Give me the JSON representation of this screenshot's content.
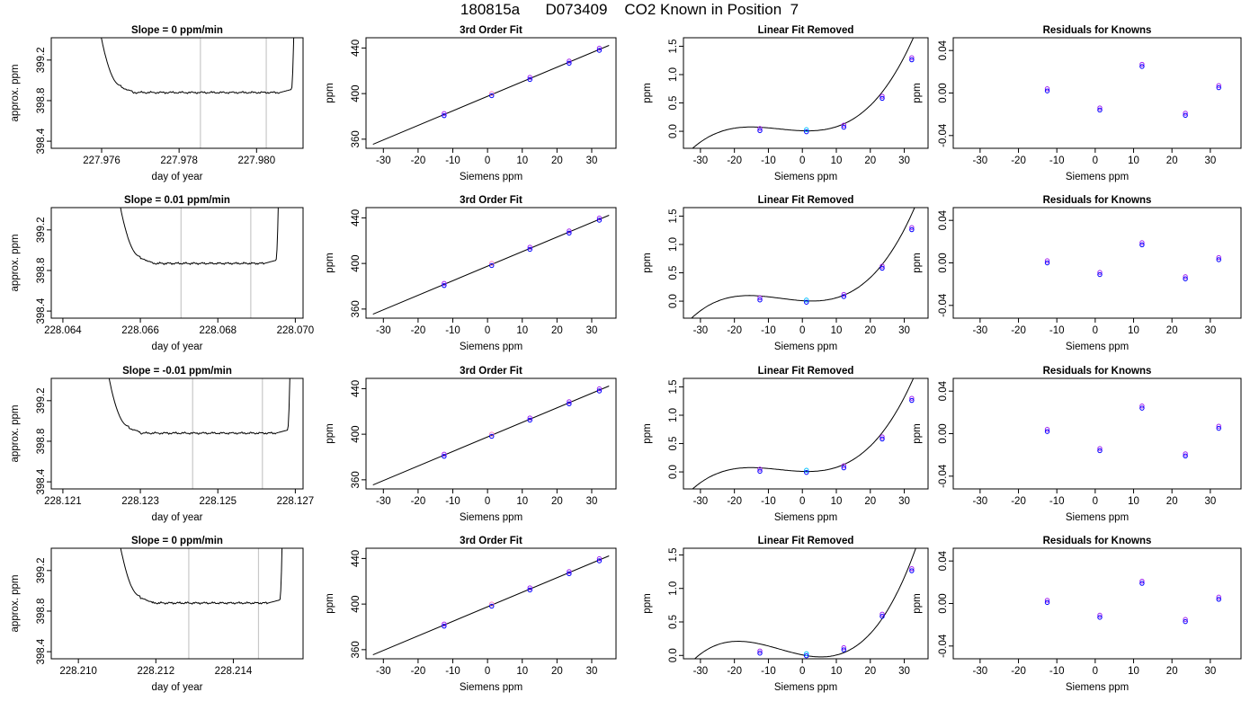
{
  "page": {
    "title": "180815a      D073409    CO2 Known in Position  7"
  },
  "colors": {
    "axis": "#000000",
    "curve": "#000000",
    "marker_window": "#c8c8c8",
    "point_blue": "#0000ff",
    "point_purple": "#a020f0",
    "point_pink": "#ff80c0",
    "point_cyan": "#00bfff"
  },
  "chart_data": [
    {
      "type": "line",
      "row": 0,
      "col": 0,
      "title": "Slope =  0  ppm/min",
      "xlabel": "day of year",
      "ylabel": "approx. ppm",
      "xlim": [
        227.9747,
        227.9812
      ],
      "ylim": [
        398.33,
        399.42
      ],
      "xticks": [
        227.976,
        227.978,
        227.98
      ],
      "xtick_labels": [
        "227.976",
        "227.978",
        "227.980"
      ],
      "yticks": [
        398.4,
        398.8,
        399.2
      ],
      "ytick_labels": [
        "398.4",
        "398.8",
        "399.2"
      ],
      "trace": {
        "start": 227.9757,
        "rise_end": 227.9765,
        "flat_start": 227.9768,
        "flat_end": 227.9806,
        "rise_start": 227.9809,
        "end": 227.981,
        "level": 398.88
      },
      "window": [
        227.97855,
        227.98025
      ]
    },
    {
      "type": "scatter",
      "row": 0,
      "col": 1,
      "title": "3rd Order Fit",
      "xlabel": "Siemens ppm",
      "ylabel": "ppm",
      "xlim": [
        -35,
        37
      ],
      "ylim": [
        352,
        449
      ],
      "xticks": [
        -30,
        -20,
        -10,
        0,
        10,
        20,
        30
      ],
      "xtick_labels": [
        "-30",
        "-20",
        "-10",
        "0",
        "10",
        "20",
        "30"
      ],
      "yticks": [
        360,
        400,
        440
      ],
      "ytick_labels": [
        "360",
        "400",
        "440"
      ],
      "x": [
        -12.5,
        1.2,
        12.2,
        23.5,
        32.2
      ],
      "y": [
        381.6,
        399.1,
        413.3,
        427.6,
        438.9
      ],
      "fit_line": [
        [
          -33,
          355.5
        ],
        [
          35,
          442.3
        ]
      ]
    },
    {
      "type": "scatter",
      "row": 0,
      "col": 2,
      "title": "Linear Fit Removed",
      "xlabel": "Siemens ppm",
      "ylabel": "ppm",
      "xlim": [
        -35,
        37
      ],
      "ylim": [
        -0.3,
        1.65
      ],
      "xticks": [
        -30,
        -20,
        -10,
        0,
        10,
        20,
        30
      ],
      "xtick_labels": [
        "-30",
        "-20",
        "-10",
        "0",
        "10",
        "20",
        "30"
      ],
      "yticks": [
        0.0,
        0.5,
        1.0,
        1.5
      ],
      "ytick_labels": [
        "0.0",
        "0.5",
        "1.0",
        "1.5"
      ],
      "x": [
        -12.5,
        1.2,
        12.2,
        23.5,
        32.2
      ],
      "y": [
        0.03,
        0.01,
        0.09,
        0.6,
        1.28
      ],
      "fit_curve": {
        "coef": [
          0.009,
          -0.002,
          0.000615,
          3.01e-05
        ],
        "xrange": [
          -33,
          35
        ]
      }
    },
    {
      "type": "scatter",
      "row": 0,
      "col": 3,
      "title": "Residuals for Knowns",
      "xlabel": "Siemens ppm",
      "ylabel": "ppm",
      "xlim": [
        -37,
        38
      ],
      "ylim": [
        -0.052,
        0.052
      ],
      "xticks": [
        -30,
        -20,
        -10,
        0,
        10,
        20,
        30
      ],
      "xtick_labels": [
        "-30",
        "-20",
        "-10",
        "0",
        "10",
        "20",
        "30"
      ],
      "yticks": [
        -0.04,
        0.0,
        0.04
      ],
      "ytick_labels": [
        "-0.04",
        "0.00",
        "0.04"
      ],
      "x": [
        -12.5,
        1.2,
        12.2,
        23.5,
        32.2
      ],
      "y": [
        0.003,
        -0.015,
        0.026,
        -0.02,
        0.006
      ]
    },
    {
      "type": "line",
      "row": 1,
      "col": 0,
      "title": "Slope =  0.01  ppm/min",
      "xlabel": "day of year",
      "ylabel": "approx. ppm",
      "xlim": [
        228.0637,
        228.0702
      ],
      "ylim": [
        398.33,
        399.42
      ],
      "xticks": [
        228.064,
        228.066,
        228.068,
        228.07
      ],
      "xtick_labels": [
        "228.064",
        "228.066",
        "228.068",
        "228.070"
      ],
      "yticks": [
        398.4,
        398.8,
        399.2
      ],
      "ytick_labels": [
        "398.4",
        "398.8",
        "399.2"
      ],
      "trace": {
        "start": 228.0652,
        "rise_end": 228.066,
        "flat_start": 228.0663,
        "flat_end": 228.0692,
        "rise_start": 228.0695,
        "end": 228.0696,
        "level": 398.87
      },
      "window": [
        228.06705,
        228.06885
      ]
    },
    {
      "type": "scatter",
      "row": 1,
      "col": 1,
      "title": "3rd Order Fit",
      "xlabel": "Siemens ppm",
      "ylabel": "ppm",
      "xlim": [
        -35,
        37
      ],
      "ylim": [
        352,
        449
      ],
      "xticks": [
        -30,
        -20,
        -10,
        0,
        10,
        20,
        30
      ],
      "xtick_labels": [
        "-30",
        "-20",
        "-10",
        "0",
        "10",
        "20",
        "30"
      ],
      "yticks": [
        360,
        400,
        440
      ],
      "ytick_labels": [
        "360",
        "400",
        "440"
      ],
      "x": [
        -12.5,
        1.2,
        12.2,
        23.5,
        32.2
      ],
      "y": [
        381.6,
        399.1,
        413.3,
        427.6,
        438.9
      ],
      "fit_line": [
        [
          -33,
          355.5
        ],
        [
          35,
          442.3
        ]
      ]
    },
    {
      "type": "scatter",
      "row": 1,
      "col": 2,
      "title": "Linear Fit Removed",
      "xlabel": "Siemens ppm",
      "ylabel": "ppm",
      "xlim": [
        -35,
        37
      ],
      "ylim": [
        -0.3,
        1.65
      ],
      "xticks": [
        -30,
        -20,
        -10,
        0,
        10,
        20,
        30
      ],
      "xtick_labels": [
        "-30",
        "-20",
        "-10",
        "0",
        "10",
        "20",
        "30"
      ],
      "yticks": [
        0.0,
        0.5,
        1.0,
        1.5
      ],
      "ytick_labels": [
        "0.0",
        "0.5",
        "1.0",
        "1.5"
      ],
      "x": [
        -12.5,
        1.2,
        12.2,
        23.5,
        32.2
      ],
      "y": [
        0.04,
        0.0,
        0.1,
        0.6,
        1.28
      ],
      "fit_curve": {
        "coef": [
          0.008,
          -0.004,
          0.0006,
          3.1e-05
        ],
        "xrange": [
          -33,
          35
        ]
      }
    },
    {
      "type": "scatter",
      "row": 1,
      "col": 3,
      "title": "Residuals for Knowns",
      "xlabel": "Siemens ppm",
      "ylabel": "ppm",
      "xlim": [
        -37,
        38
      ],
      "ylim": [
        -0.052,
        0.052
      ],
      "xticks": [
        -30,
        -20,
        -10,
        0,
        10,
        20,
        30
      ],
      "xtick_labels": [
        "-30",
        "-20",
        "-10",
        "0",
        "10",
        "20",
        "30"
      ],
      "yticks": [
        -0.04,
        0.0,
        0.04
      ],
      "ytick_labels": [
        "-0.04",
        "0.00",
        "0.04"
      ],
      "x": [
        -12.5,
        1.2,
        12.2,
        23.5,
        32.2
      ],
      "y": [
        0.001,
        -0.01,
        0.018,
        -0.014,
        0.004
      ]
    },
    {
      "type": "line",
      "row": 2,
      "col": 0,
      "title": "Slope =  -0.01  ppm/min",
      "xlabel": "day of year",
      "ylabel": "approx. ppm",
      "xlim": [
        228.1207,
        228.1272
      ],
      "ylim": [
        398.33,
        399.42
      ],
      "xticks": [
        228.121,
        228.123,
        228.125,
        228.127
      ],
      "xtick_labels": [
        "228.121",
        "228.123",
        "228.125",
        "228.127"
      ],
      "yticks": [
        398.4,
        398.8,
        399.2
      ],
      "ytick_labels": [
        "398.4",
        "398.8",
        "399.2"
      ],
      "trace": {
        "start": 228.1219,
        "rise_end": 228.1227,
        "flat_start": 228.123,
        "flat_end": 228.1265,
        "rise_start": 228.1268,
        "end": 228.1269,
        "level": 398.88
      },
      "window": [
        228.12435,
        228.12615
      ]
    },
    {
      "type": "scatter",
      "row": 2,
      "col": 1,
      "title": "3rd Order Fit",
      "xlabel": "Siemens ppm",
      "ylabel": "ppm",
      "xlim": [
        -35,
        37
      ],
      "ylim": [
        352,
        449
      ],
      "xticks": [
        -30,
        -20,
        -10,
        0,
        10,
        20,
        30
      ],
      "xtick_labels": [
        "-30",
        "-20",
        "-10",
        "0",
        "10",
        "20",
        "30"
      ],
      "yticks": [
        360,
        400,
        440
      ],
      "ytick_labels": [
        "360",
        "400",
        "440"
      ],
      "x": [
        -12.5,
        1.2,
        12.2,
        23.5,
        32.2
      ],
      "y": [
        381.6,
        399.1,
        413.3,
        427.6,
        438.9
      ],
      "fit_line": [
        [
          -33,
          355.5
        ],
        [
          35,
          442.3
        ]
      ]
    },
    {
      "type": "scatter",
      "row": 2,
      "col": 2,
      "title": "Linear Fit Removed",
      "xlabel": "Siemens ppm",
      "ylabel": "ppm",
      "xlim": [
        -35,
        37
      ],
      "ylim": [
        -0.3,
        1.65
      ],
      "xticks": [
        -30,
        -20,
        -10,
        0,
        10,
        20,
        30
      ],
      "xtick_labels": [
        "-30",
        "-20",
        "-10",
        "0",
        "10",
        "20",
        "30"
      ],
      "yticks": [
        0.0,
        0.5,
        1.0,
        1.5
      ],
      "ytick_labels": [
        "0.0",
        "0.5",
        "1.0",
        "1.5"
      ],
      "x": [
        -12.5,
        1.2,
        12.2,
        23.5,
        32.2
      ],
      "y": [
        0.03,
        0.01,
        0.09,
        0.6,
        1.28
      ],
      "fit_curve": {
        "coef": [
          0.009,
          -0.002,
          0.000615,
          3.01e-05
        ],
        "xrange": [
          -33,
          35
        ]
      }
    },
    {
      "type": "scatter",
      "row": 2,
      "col": 3,
      "title": "Residuals for Knowns",
      "xlabel": "Siemens ppm",
      "ylabel": "ppm",
      "xlim": [
        -37,
        38
      ],
      "ylim": [
        -0.052,
        0.052
      ],
      "xticks": [
        -30,
        -20,
        -10,
        0,
        10,
        20,
        30
      ],
      "xtick_labels": [
        "-30",
        "-20",
        "-10",
        "0",
        "10",
        "20",
        "30"
      ],
      "yticks": [
        -0.04,
        0.0,
        0.04
      ],
      "ytick_labels": [
        "-0.04",
        "0.00",
        "0.04"
      ],
      "x": [
        -12.5,
        1.2,
        12.2,
        23.5,
        32.2
      ],
      "y": [
        0.003,
        -0.015,
        0.025,
        -0.02,
        0.006
      ]
    },
    {
      "type": "line",
      "row": 3,
      "col": 0,
      "title": "Slope =  0  ppm/min",
      "xlabel": "day of year",
      "ylabel": "approx. ppm",
      "xlim": [
        228.2093,
        228.2158
      ],
      "ylim": [
        398.33,
        399.42
      ],
      "xticks": [
        228.21,
        228.212,
        228.214
      ],
      "xtick_labels": [
        "228.210",
        "228.212",
        "228.214"
      ],
      "yticks": [
        398.4,
        398.8,
        399.2
      ],
      "ytick_labels": [
        "398.4",
        "398.8",
        "399.2"
      ],
      "trace": {
        "start": 228.2108,
        "rise_end": 228.2116,
        "flat_start": 228.2119,
        "flat_end": 228.2149,
        "rise_start": 228.2152,
        "end": 228.2153,
        "level": 398.88
      },
      "window": [
        228.21285,
        228.21465
      ]
    },
    {
      "type": "scatter",
      "row": 3,
      "col": 1,
      "title": "3rd Order Fit",
      "xlabel": "Siemens ppm",
      "ylabel": "ppm",
      "xlim": [
        -35,
        37
      ],
      "ylim": [
        352,
        449
      ],
      "xticks": [
        -30,
        -20,
        -10,
        0,
        10,
        20,
        30
      ],
      "xtick_labels": [
        "-30",
        "-20",
        "-10",
        "0",
        "10",
        "20",
        "30"
      ],
      "yticks": [
        360,
        400,
        440
      ],
      "ytick_labels": [
        "360",
        "400",
        "440"
      ],
      "x": [
        -12.5,
        1.2,
        12.2,
        23.5,
        32.2
      ],
      "y": [
        381.6,
        399.1,
        413.3,
        427.6,
        438.9
      ],
      "fit_line": [
        [
          -33,
          355.5
        ],
        [
          35,
          442.3
        ]
      ]
    },
    {
      "type": "scatter",
      "row": 3,
      "col": 2,
      "title": "Linear Fit Removed",
      "xlabel": "Siemens ppm",
      "ylabel": "ppm",
      "xlim": [
        -35,
        37
      ],
      "ylim": [
        -0.05,
        1.6
      ],
      "xticks": [
        -30,
        -20,
        -10,
        0,
        10,
        20,
        30
      ],
      "xtick_labels": [
        "-30",
        "-20",
        "-10",
        "0",
        "10",
        "20",
        "30"
      ],
      "yticks": [
        0.0,
        0.5,
        1.0,
        1.5
      ],
      "ytick_labels": [
        "0.0",
        "0.5",
        "1.0",
        "1.5"
      ],
      "x": [
        -12.5,
        1.2,
        12.2,
        23.5,
        32.2
      ],
      "y": [
        0.05,
        0.01,
        0.1,
        0.6,
        1.28
      ],
      "fit_curve": {
        "coef": [
          0.008,
          -0.01,
          0.00065,
          3.23e-05
        ],
        "xrange": [
          -33,
          35
        ]
      }
    },
    {
      "type": "scatter",
      "row": 3,
      "col": 3,
      "title": "Residuals for Knowns",
      "xlabel": "Siemens ppm",
      "ylabel": "ppm",
      "xlim": [
        -37,
        38
      ],
      "ylim": [
        -0.052,
        0.052
      ],
      "xticks": [
        -30,
        -20,
        -10,
        0,
        10,
        20,
        30
      ],
      "xtick_labels": [
        "-30",
        "-20",
        "-10",
        "0",
        "10",
        "20",
        "30"
      ],
      "yticks": [
        -0.04,
        0.0,
        0.04
      ],
      "ytick_labels": [
        "-0.04",
        "0.00",
        "0.04"
      ],
      "x": [
        -12.5,
        1.2,
        12.2,
        23.5,
        32.2
      ],
      "y": [
        0.002,
        -0.012,
        0.02,
        -0.016,
        0.005
      ]
    }
  ]
}
